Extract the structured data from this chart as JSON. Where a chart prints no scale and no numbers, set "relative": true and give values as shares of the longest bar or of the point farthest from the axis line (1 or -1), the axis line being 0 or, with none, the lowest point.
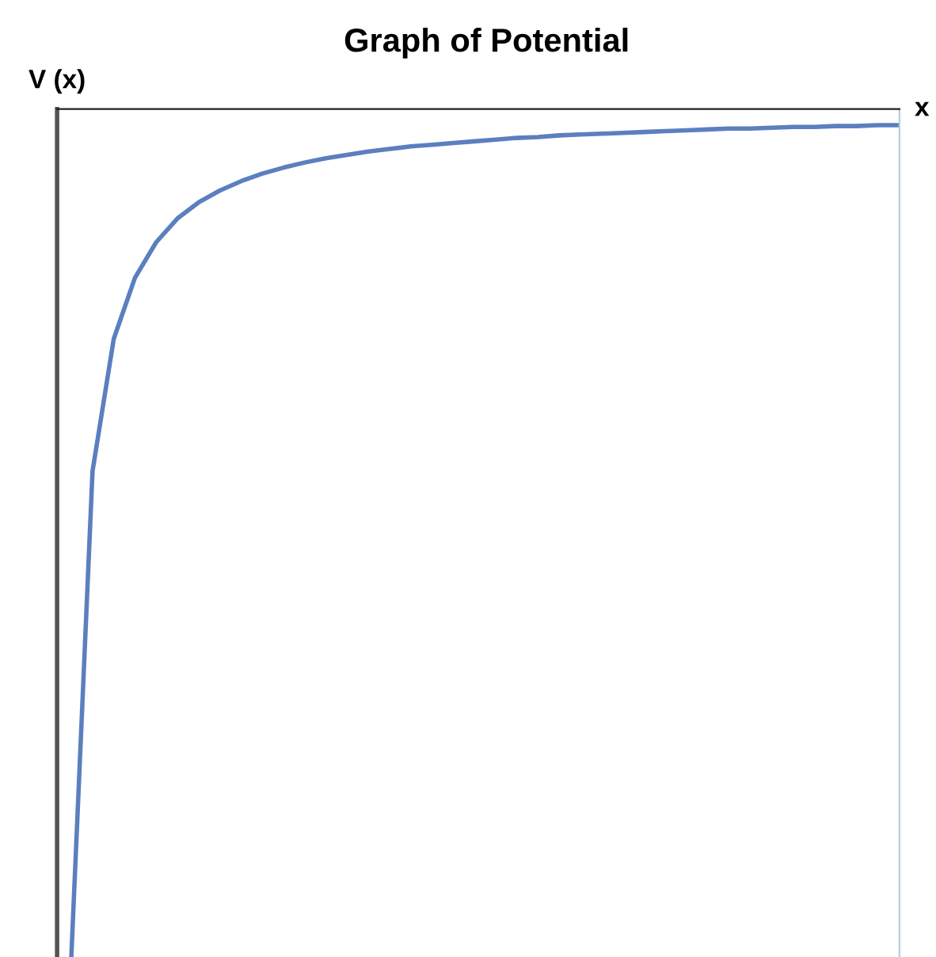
{
  "chart_data": {
    "type": "line",
    "title": "Graph of Potential",
    "xlabel": "x",
    "ylabel": "V (x)",
    "relative": true,
    "marker": "none",
    "line_style": "solid",
    "categories": [
      null,
      null,
      null,
      null,
      null,
      null,
      null,
      null,
      null,
      null,
      null,
      null,
      null,
      null,
      null,
      null,
      null,
      null,
      null,
      null,
      null,
      null,
      null,
      null,
      null,
      null,
      null,
      null,
      null,
      null,
      null,
      null,
      null,
      null,
      null,
      null,
      null,
      null,
      null,
      null
    ],
    "series": [
      {
        "color": "#5b7fbf",
        "values": [
          -1.0,
          -0.427,
          -0.271,
          -0.199,
          -0.157,
          -0.129,
          -0.11,
          -0.096,
          -0.085,
          -0.076,
          -0.069,
          -0.063,
          -0.058,
          -0.054,
          -0.05,
          -0.047,
          -0.044,
          -0.042,
          -0.04,
          -0.038,
          -0.036,
          -0.034,
          -0.033,
          -0.031,
          -0.03,
          -0.029,
          -0.028,
          -0.027,
          -0.026,
          -0.025,
          -0.024,
          -0.023,
          -0.023,
          -0.022,
          -0.021,
          -0.021,
          -0.02,
          -0.02,
          -0.019,
          -0.019
        ]
      }
    ]
  }
}
